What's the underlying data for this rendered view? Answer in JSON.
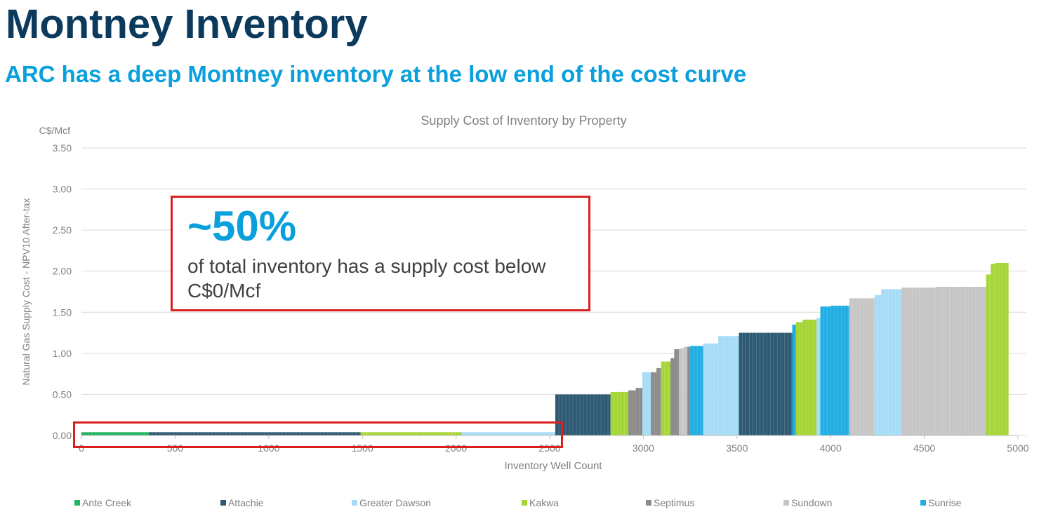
{
  "page": {
    "title": "Montney Inventory",
    "subtitle": "ARC has a deep Montney inventory at the low end of the cost curve"
  },
  "callout": {
    "big": "~50%",
    "text": "of total inventory has a supply cost below C$0/Mcf"
  },
  "colors": {
    "title": "#0b3a5c",
    "accent": "#0aa0dc",
    "highlight": "#d9201f"
  },
  "chart_data": {
    "type": "bar",
    "title": "Supply Cost of Inventory by Property",
    "xlabel": "Inventory Well Count",
    "ylabel": "Natural Gas Supply Cost - NPV10 After-tax",
    "yunit": "C$/Mcf",
    "xlim": [
      0,
      5000
    ],
    "ylim": [
      0,
      3.5
    ],
    "xticks": [
      0,
      500,
      1000,
      1500,
      2000,
      2500,
      3000,
      3500,
      4000,
      4500,
      5000
    ],
    "yticks": [
      0.0,
      0.5,
      1.0,
      1.5,
      2.0,
      2.5,
      3.0,
      3.5
    ],
    "ytick_labels": [
      "0.00",
      "0.50",
      "1.00",
      "1.50",
      "2.00",
      "2.50",
      "3.00",
      "3.50"
    ],
    "grid": true,
    "legend_position": "bottom",
    "series": [
      {
        "name": "Ante Creek",
        "color": "#21b35f"
      },
      {
        "name": "Attachie",
        "color": "#2f5a73"
      },
      {
        "name": "Greater Dawson",
        "color": "#a7dcf7"
      },
      {
        "name": "Kakwa",
        "color": "#a6d636"
      },
      {
        "name": "Septimus",
        "color": "#8c8c8c"
      },
      {
        "name": "Sundown",
        "color": "#c6c6c6"
      },
      {
        "name": "Sunrise",
        "color": "#22aee3"
      }
    ],
    "segments": [
      {
        "property": "Ante Creek",
        "x0": 0,
        "x1": 360,
        "value": 0.04
      },
      {
        "property": "Attachie",
        "x0": 360,
        "x1": 1490,
        "value": 0.04
      },
      {
        "property": "Kakwa",
        "x0": 1490,
        "x1": 2030,
        "value": 0.04
      },
      {
        "property": "Greater Dawson",
        "x0": 2030,
        "x1": 2530,
        "value": 0.04
      },
      {
        "property": "Attachie",
        "x0": 2530,
        "x1": 2825,
        "value": 0.5
      },
      {
        "property": "Kakwa",
        "x0": 2825,
        "x1": 2920,
        "value": 0.53
      },
      {
        "property": "Septimus",
        "x0": 2920,
        "x1": 2960,
        "value": 0.55
      },
      {
        "property": "Septimus",
        "x0": 2960,
        "x1": 2995,
        "value": 0.58
      },
      {
        "property": "Greater Dawson",
        "x0": 2995,
        "x1": 3040,
        "value": 0.77
      },
      {
        "property": "Septimus",
        "x0": 3040,
        "x1": 3070,
        "value": 0.77
      },
      {
        "property": "Septimus",
        "x0": 3070,
        "x1": 3095,
        "value": 0.82
      },
      {
        "property": "Kakwa",
        "x0": 3095,
        "x1": 3145,
        "value": 0.9
      },
      {
        "property": "Septimus",
        "x0": 3145,
        "x1": 3165,
        "value": 0.94
      },
      {
        "property": "Septimus",
        "x0": 3165,
        "x1": 3190,
        "value": 1.05
      },
      {
        "property": "Sundown",
        "x0": 3190,
        "x1": 3215,
        "value": 1.06
      },
      {
        "property": "Sundown",
        "x0": 3215,
        "x1": 3235,
        "value": 1.08
      },
      {
        "property": "Septimus",
        "x0": 3235,
        "x1": 3250,
        "value": 1.08
      },
      {
        "property": "Sunrise",
        "x0": 3250,
        "x1": 3320,
        "value": 1.09
      },
      {
        "property": "Greater Dawson",
        "x0": 3320,
        "x1": 3400,
        "value": 1.12
      },
      {
        "property": "Greater Dawson",
        "x0": 3400,
        "x1": 3510,
        "value": 1.21
      },
      {
        "property": "Attachie",
        "x0": 3510,
        "x1": 3795,
        "value": 1.25
      },
      {
        "property": "Sunrise",
        "x0": 3795,
        "x1": 3815,
        "value": 1.35
      },
      {
        "property": "Kakwa",
        "x0": 3815,
        "x1": 3850,
        "value": 1.38
      },
      {
        "property": "Kakwa",
        "x0": 3850,
        "x1": 3925,
        "value": 1.41
      },
      {
        "property": "Greater Dawson",
        "x0": 3925,
        "x1": 3945,
        "value": 1.43
      },
      {
        "property": "Sunrise",
        "x0": 3945,
        "x1": 4000,
        "value": 1.57
      },
      {
        "property": "Sunrise",
        "x0": 4000,
        "x1": 4100,
        "value": 1.58
      },
      {
        "property": "Sundown",
        "x0": 4100,
        "x1": 4235,
        "value": 1.67
      },
      {
        "property": "Greater Dawson",
        "x0": 4235,
        "x1": 4270,
        "value": 1.71
      },
      {
        "property": "Greater Dawson",
        "x0": 4270,
        "x1": 4380,
        "value": 1.78
      },
      {
        "property": "Sundown",
        "x0": 4380,
        "x1": 4560,
        "value": 1.8
      },
      {
        "property": "Sundown",
        "x0": 4560,
        "x1": 4700,
        "value": 1.81
      },
      {
        "property": "Sundown",
        "x0": 4700,
        "x1": 4830,
        "value": 1.81
      },
      {
        "property": "Kakwa",
        "x0": 4830,
        "x1": 4855,
        "value": 1.96
      },
      {
        "property": "Kakwa",
        "x0": 4855,
        "x1": 4880,
        "value": 2.09
      },
      {
        "property": "Kakwa",
        "x0": 4880,
        "x1": 4950,
        "value": 2.1
      }
    ]
  }
}
